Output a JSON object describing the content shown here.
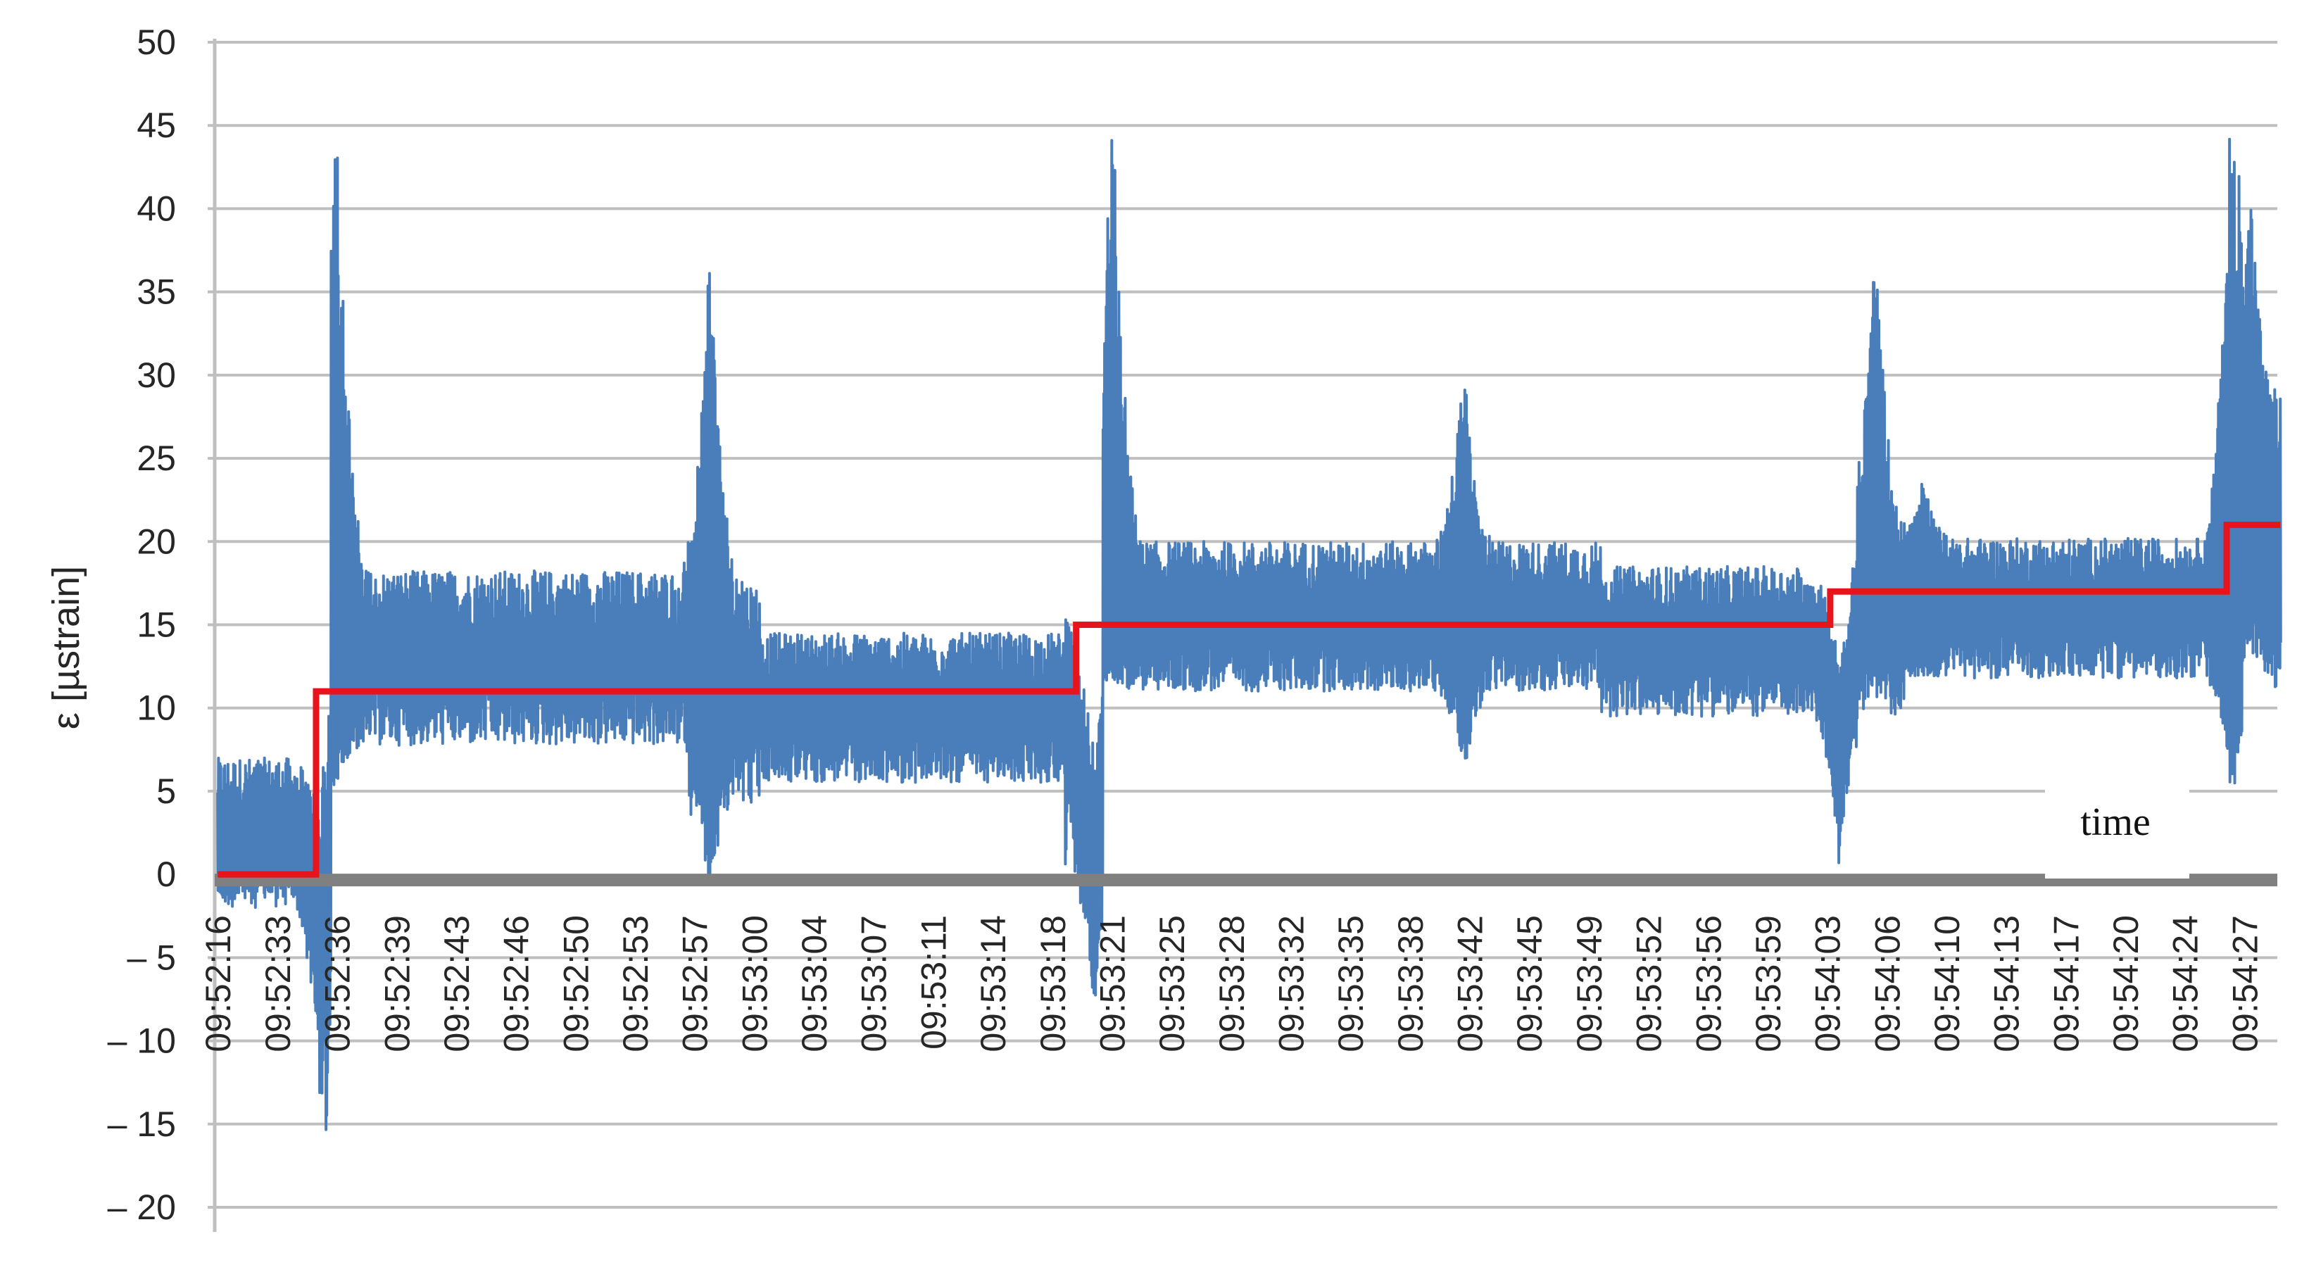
{
  "chart_data": {
    "type": "line",
    "ylabel": "ε [µstrain]",
    "xlabel": "",
    "annotation": "time",
    "ylim": [
      -20,
      50
    ],
    "ytick_labels": [
      "50",
      "45",
      "40",
      "35",
      "30",
      "25",
      "20",
      "15",
      "10",
      "5",
      "0",
      "– 5",
      "– 10",
      "– 15",
      "– 20"
    ],
    "ytick_values": [
      50,
      45,
      40,
      35,
      30,
      25,
      20,
      15,
      10,
      5,
      0,
      -5,
      -10,
      -15,
      -20
    ],
    "x_labels": [
      "09:52:16",
      "09:52:33",
      "09:52:36",
      "09:52:39",
      "09:52:43",
      "09:52:46",
      "09:52:50",
      "09:52:53",
      "09:52:57",
      "09:53:00",
      "09:53:04",
      "09:53:07",
      "09:53:11",
      "09:53:14",
      "09:53:18",
      "09:53:21",
      "09:53:25",
      "09:53:28",
      "09:53:32",
      "09:53:35",
      "09:53:38",
      "09:53:42",
      "09:53:45",
      "09:53:49",
      "09:53:52",
      "09:53:56",
      "09:53:59",
      "09:54:03",
      "09:54:06",
      "09:54:10",
      "09:54:13",
      "09:54:17",
      "09:54:20",
      "09:54:24",
      "09:54:27"
    ],
    "grid": true,
    "colors": {
      "raw": "#4a7ebb",
      "mean": "#e8141b",
      "zero_line": "#808080",
      "grid": "#bfbfbf"
    },
    "series": [
      {
        "key": "raw",
        "style": "noisy",
        "segments": [
          {
            "from": 0.0,
            "to": 1.75,
            "base": 2.5,
            "amp": 3.0
          },
          {
            "from": 1.75,
            "to": 2.0,
            "base": 13,
            "amp": 4.5
          },
          {
            "from": 2.0,
            "to": 7.9,
            "base": 13,
            "amp": 3.5
          },
          {
            "from": 7.9,
            "to": 9.1,
            "base": 11,
            "amp": 4.5
          },
          {
            "from": 9.1,
            "to": 14.2,
            "base": 10,
            "amp": 3.0
          },
          {
            "from": 14.2,
            "to": 14.85,
            "base": 8,
            "amp": 5.0
          },
          {
            "from": 14.85,
            "to": 23.2,
            "base": 15.5,
            "amp": 3.0
          },
          {
            "from": 23.2,
            "to": 27.4,
            "base": 14,
            "amp": 3.0
          },
          {
            "from": 27.4,
            "to": 28.3,
            "base": 15,
            "amp": 4.0
          },
          {
            "from": 28.3,
            "to": 33.9,
            "base": 16,
            "amp": 2.8
          },
          {
            "from": 33.9,
            "to": 34.6,
            "base": 20,
            "amp": 6.0
          }
        ],
        "spikes": [
          {
            "at": 1.78,
            "min": -19,
            "max": 0
          },
          {
            "at": 2.0,
            "min": 5,
            "max": 49
          },
          {
            "at": 8.25,
            "min": -1,
            "max": 39
          },
          {
            "at": 14.7,
            "min": -8,
            "max": 3
          },
          {
            "at": 15.0,
            "min": 12,
            "max": 49
          },
          {
            "at": 20.9,
            "min": 6,
            "max": 31
          },
          {
            "at": 27.2,
            "min": 0,
            "max": 10
          },
          {
            "at": 27.8,
            "min": 12,
            "max": 39
          },
          {
            "at": 28.6,
            "min": 12,
            "max": 24
          },
          {
            "at": 33.8,
            "min": 3,
            "max": 52
          },
          {
            "at": 34.1,
            "min": 15,
            "max": 41
          }
        ]
      },
      {
        "key": "mean",
        "style": "step",
        "steps": [
          {
            "x": 0.0,
            "y": 0
          },
          {
            "x": 1.65,
            "y": 11
          },
          {
            "x": 14.4,
            "y": 15
          },
          {
            "x": 27.05,
            "y": 17
          },
          {
            "x": 33.7,
            "y": 21
          },
          {
            "x": 34.6,
            "y": 21
          }
        ]
      }
    ]
  }
}
